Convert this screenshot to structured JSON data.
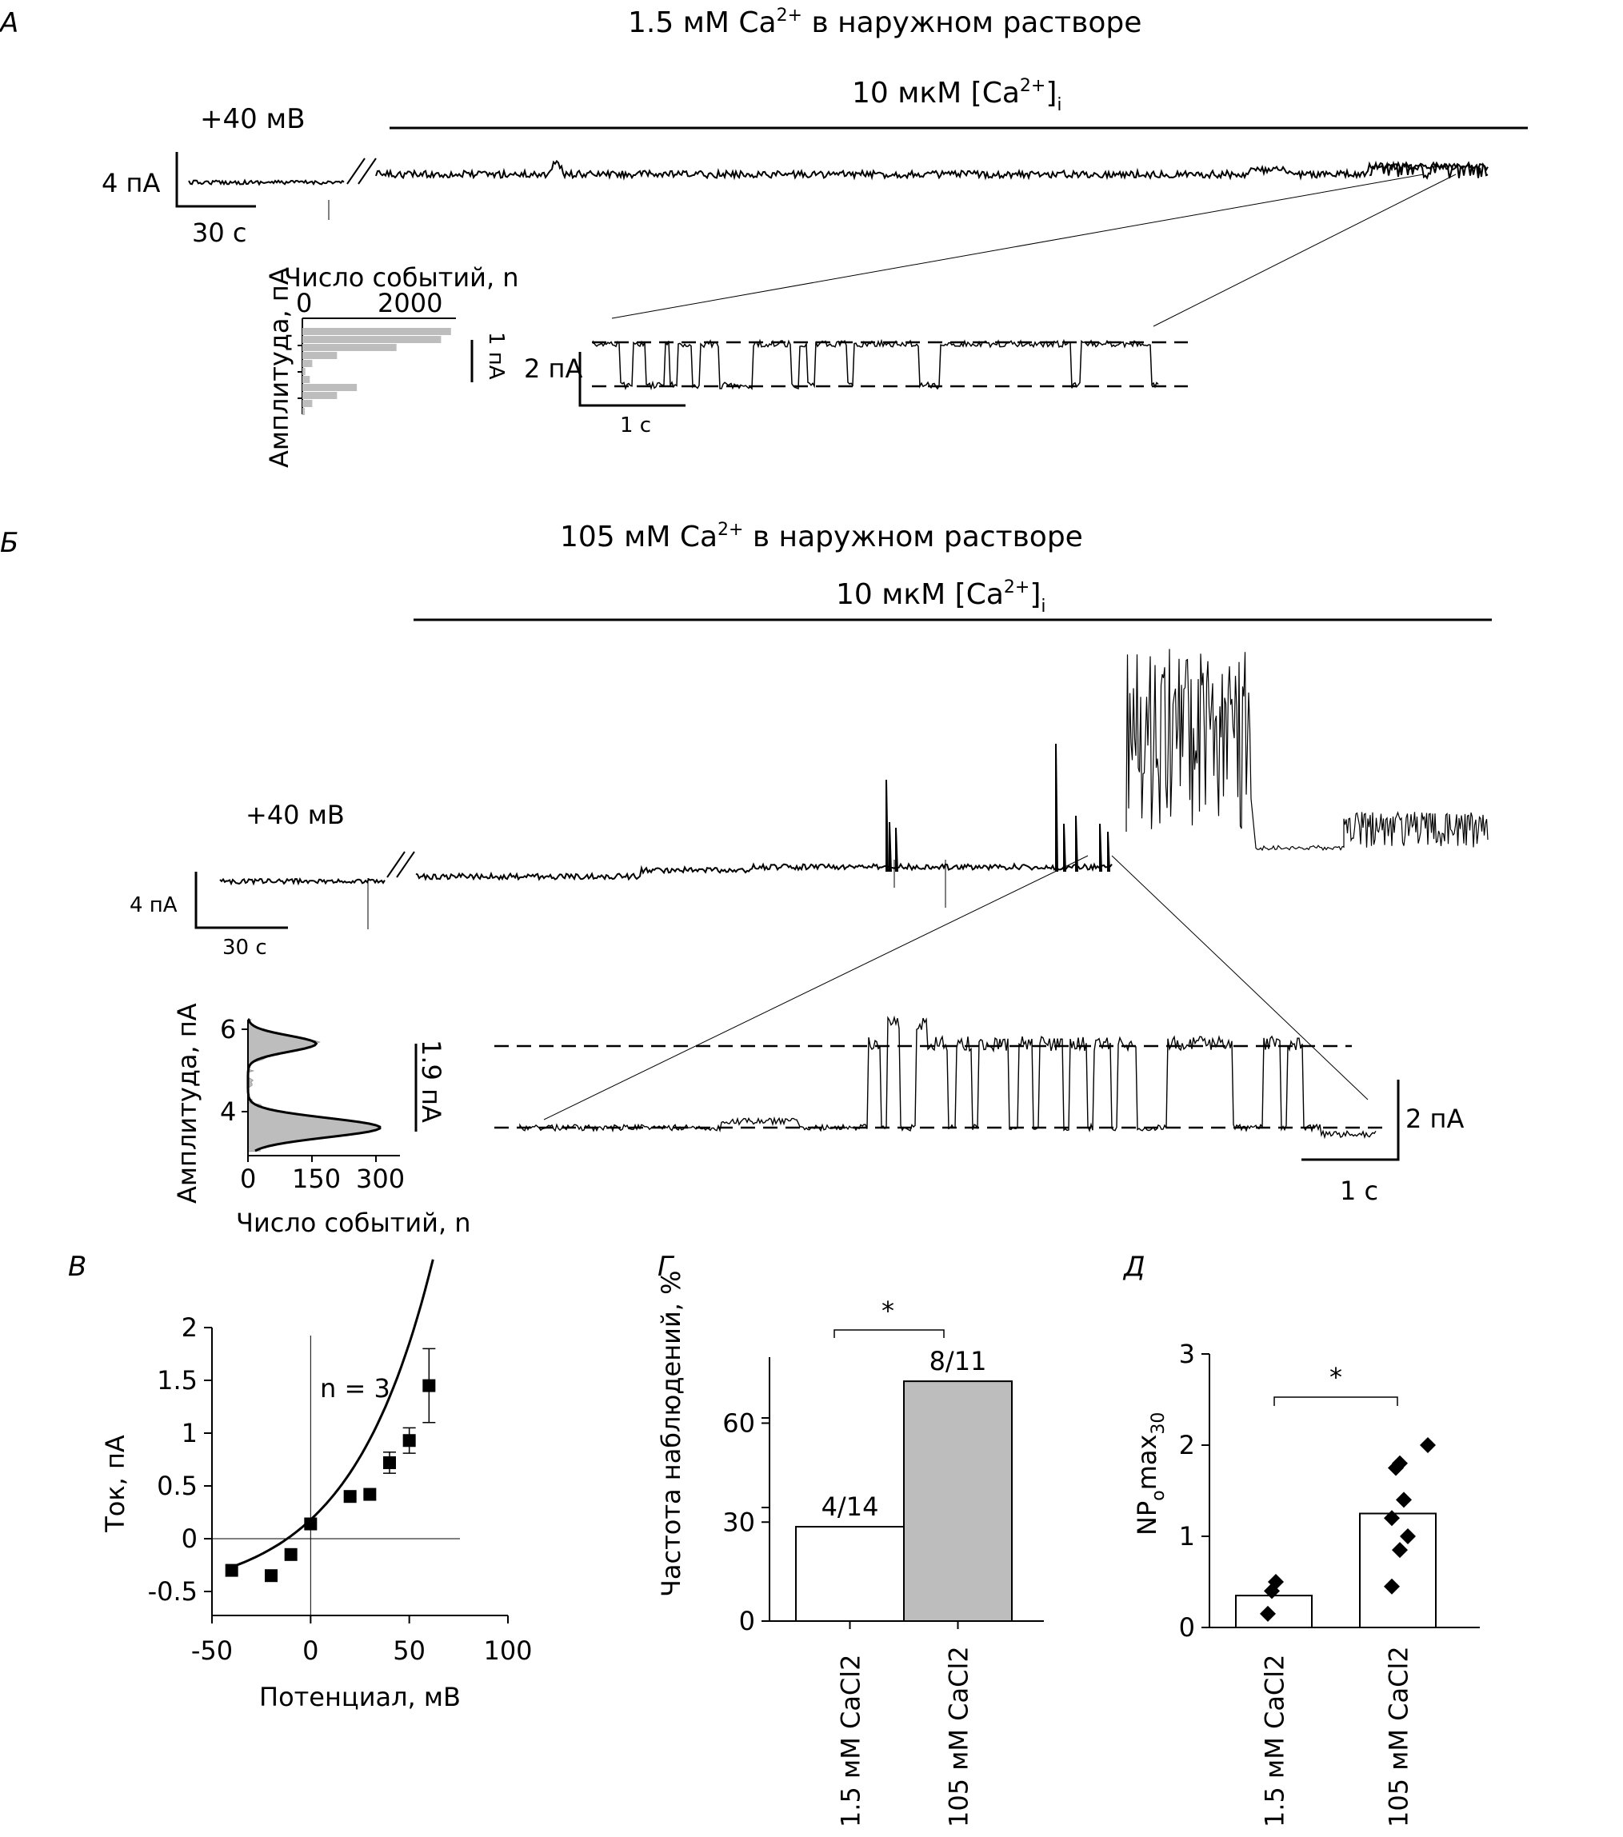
{
  "panels": {
    "A": {
      "label": "А",
      "title": "1.5 мМ Ca2+ в наружном растворе",
      "title_parts": [
        "1.5 мМ Ca",
        "2+",
        " в наружном растворе"
      ],
      "condition_parts": [
        "10 мкМ [Ca",
        "2+",
        "]",
        "i"
      ],
      "voltage": "+40 мВ",
      "scale_current": "4 пА",
      "scale_time": "30 с",
      "hist": {
        "ylabel": "Амплитуда, пА",
        "xlabel_top": "Число событий, n",
        "x_ticks": [
          "0",
          "2000"
        ],
        "scale": "1 пА",
        "bars": [
          3000,
          2800,
          1900,
          700,
          200,
          60,
          150,
          1100,
          700,
          200,
          50
        ]
      },
      "zoom": {
        "scale_current": "2 пА",
        "scale_time": "1 с"
      }
    },
    "B": {
      "label": "Б",
      "title_parts": [
        "105 мМ Ca",
        "2+",
        " в наружном растворе"
      ],
      "condition_parts": [
        "10 мкМ [Ca",
        "2+",
        "]",
        "i"
      ],
      "voltage": "+40 мВ",
      "scale_current": "4 пА",
      "scale_time": "30 с",
      "hist": {
        "ylabel": "Амплитуда, пА",
        "xlabel": "Число событий, n",
        "x_ticks": [
          "0",
          "150",
          "300"
        ],
        "y_ticks": [
          "4",
          "6"
        ],
        "scale": "1.9 пА"
      },
      "zoom": {
        "scale_current": "2 пА",
        "scale_time": "1 с"
      }
    },
    "V": {
      "label": "В"
    },
    "G": {
      "label": "Г",
      "sig": "*"
    },
    "D": {
      "label": "Д",
      "sig": "*"
    }
  },
  "chart_data": [
    {
      "type": "scatter",
      "panel": "В",
      "xlabel": "Потенциал, мВ",
      "ylabel": "Ток, пА",
      "annotation": "n = 3",
      "xlim": [
        -50,
        100
      ],
      "ylim": [
        -0.5,
        2
      ],
      "x_ticks": [
        "-50",
        "0",
        "50",
        "100"
      ],
      "y_ticks": [
        "-0.5",
        "0",
        "0.5",
        "1",
        "1.5",
        "2"
      ],
      "points": [
        {
          "x": -40,
          "y": -0.3
        },
        {
          "x": -20,
          "y": -0.35
        },
        {
          "x": -10,
          "y": -0.15
        },
        {
          "x": 0,
          "y": 0.14
        },
        {
          "x": 20,
          "y": 0.4
        },
        {
          "x": 30,
          "y": 0.42
        },
        {
          "x": 40,
          "y": 0.72,
          "err": 0.1
        },
        {
          "x": 50,
          "y": 0.93,
          "err": 0.12
        },
        {
          "x": 60,
          "y": 1.45,
          "err": 0.35
        }
      ],
      "fit": "exponential"
    },
    {
      "type": "bar",
      "panel": "Г",
      "ylabel": "Частота наблюдений, %",
      "categories": [
        "1.5 мМ CaCl2",
        "105 мМ CaCl2"
      ],
      "values": [
        28.6,
        72.7
      ],
      "bar_labels": [
        "4/14",
        "8/11"
      ],
      "colors": [
        "#ffffff",
        "#bdbdbd"
      ],
      "ylim": [
        0,
        80
      ],
      "y_ticks": [
        "0",
        "30",
        "60"
      ]
    },
    {
      "type": "bar",
      "panel": "Д",
      "ylabel": "NPomax30",
      "categories": [
        "1.5 мМ CaCl2",
        "105 мМ CaCl2"
      ],
      "values": [
        0.35,
        1.25
      ],
      "points": [
        [
          0.5,
          0.4,
          0.15
        ],
        [
          2.0,
          1.8,
          1.75,
          1.4,
          1.2,
          1.0,
          0.85,
          0.45
        ]
      ],
      "ylim": [
        0,
        3
      ],
      "y_ticks": [
        "0",
        "1",
        "2",
        "3"
      ]
    }
  ]
}
